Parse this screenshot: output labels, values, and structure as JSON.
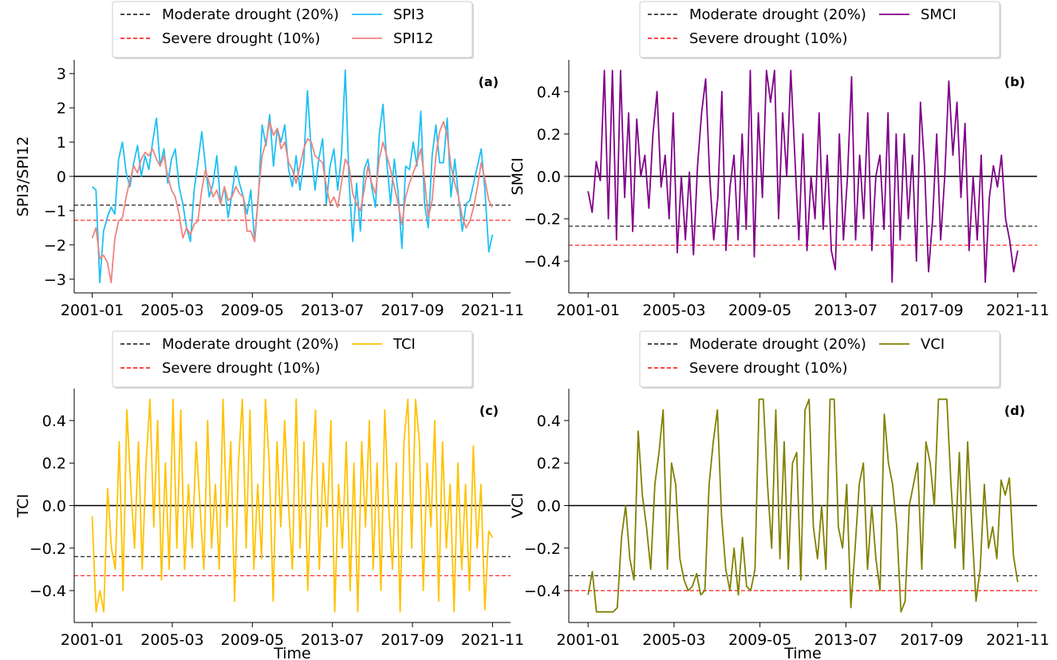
{
  "figure": {
    "x_ticks": [
      "2001-01",
      "2005-03",
      "2009-05",
      "2013-07",
      "2017-09",
      "2021-11"
    ],
    "x_label": "Time"
  },
  "colors": {
    "moderate": "#333333",
    "severe": "#ff2b2b",
    "zero": "#000000",
    "spi3": "#1ec0f2",
    "spi12": "#ee8480",
    "smci": "#800088",
    "tci": "#ffc200",
    "vci": "#808000"
  },
  "chart_data": [
    {
      "id": "a",
      "type": "line",
      "panel_label": "(a)",
      "ylabel": "SPI3/SPI12",
      "xlabel": "",
      "x_range": [
        "2001-01",
        "2021-11"
      ],
      "ylim": [
        -3.4,
        3.4
      ],
      "yticks": [
        -3,
        -2,
        -1,
        0,
        1,
        2,
        3
      ],
      "ytick_labels": [
        "−3",
        "−2",
        "−1",
        "0",
        "1",
        "2",
        "3"
      ],
      "legend": [
        {
          "label": "Moderate drought (20%)",
          "style": "dashed",
          "color": "#333333"
        },
        {
          "label": "SPI3",
          "style": "solid",
          "color": "#1ec0f2"
        },
        {
          "label": "Severe drought (10%)",
          "style": "dashed",
          "color": "#ff2b2b"
        },
        {
          "label": "SPI12",
          "style": "solid",
          "color": "#ee8480"
        }
      ],
      "hlines": {
        "moderate": -0.84,
        "severe": -1.28,
        "zero": 0
      },
      "series": [
        {
          "name": "SPI3",
          "color": "#1ec0f2",
          "x_start": "2001-01",
          "x_end": "2021-11",
          "knots": [
            -0.3,
            -0.4,
            -3.1,
            -1.6,
            -1.2,
            -0.9,
            -1.1,
            0.5,
            1.0,
            0.1,
            -0.3,
            0.4,
            0.9,
            0.0,
            0.6,
            0.2,
            1.0,
            1.7,
            0.3,
            0.8,
            -0.2,
            0.5,
            0.8,
            -0.3,
            -0.8,
            -1.5,
            -1.9,
            -0.4,
            0.4,
            1.3,
            0.3,
            -0.6,
            -0.2,
            0.6,
            -0.8,
            -0.3,
            -1.2,
            -0.5,
            0.3,
            -0.2,
            -0.6,
            -1.1,
            -0.4,
            -1.9,
            -0.6,
            1.5,
            0.9,
            1.8,
            0.3,
            1.4,
            1.0,
            1.5,
            0.2,
            -0.3,
            0.6,
            -0.4,
            0.4,
            2.5,
            0.7,
            -0.4,
            0.5,
            1.1,
            -0.8,
            0.3,
            0.8,
            -0.4,
            0.6,
            3.1,
            -0.1,
            -1.9,
            -0.2,
            -1.6,
            0.2,
            0.5,
            -0.3,
            -0.9,
            1.2,
            2.1,
            0.4,
            -0.8,
            0.5,
            -0.5,
            -2.1,
            0.3,
            0.2,
            1.0,
            0.3,
            1.9,
            -0.8,
            -1.5,
            0.6,
            1.5,
            0.4,
            0.4,
            1.7,
            -0.6,
            0.5,
            -0.6,
            -1.6,
            -0.8,
            -0.7,
            -0.2,
            0.3,
            0.8,
            -0.4,
            -2.2,
            -1.7
          ]
        },
        {
          "name": "SPI12",
          "color": "#ee8480",
          "x_start": "2001-01",
          "x_end": "2021-11",
          "knots": [
            -1.8,
            -1.5,
            -2.4,
            -2.3,
            -2.5,
            -3.1,
            -1.8,
            -1.3,
            -1.2,
            -0.6,
            -0.1,
            0.3,
            0.1,
            0.5,
            0.7,
            0.6,
            0.8,
            0.5,
            0.3,
            0.6,
            0.0,
            -0.4,
            -0.6,
            -1.1,
            -1.8,
            -1.5,
            -1.7,
            -1.4,
            -1.3,
            -0.4,
            0.2,
            -0.2,
            -0.6,
            -0.4,
            -0.8,
            -0.3,
            -0.7,
            -0.6,
            -0.3,
            -0.5,
            -0.6,
            -1.6,
            -1.6,
            -1.9,
            -0.5,
            0.6,
            1.0,
            1.6,
            1.2,
            1.4,
            0.8,
            1.0,
            0.4,
            0.2,
            -0.2,
            0.3,
            0.8,
            1.1,
            1.0,
            0.6,
            0.5,
            0.4,
            -0.3,
            -0.8,
            -0.6,
            -0.9,
            -0.2,
            0.5,
            0.3,
            -0.5,
            -0.8,
            -1.0,
            -0.4,
            0.3,
            -0.2,
            -0.5,
            0.5,
            1.0,
            0.6,
            0.2,
            -0.3,
            -0.8,
            -1.4,
            -0.6,
            -0.2,
            0.1,
            0.4,
            0.8,
            -0.1,
            -1.2,
            -0.7,
            0.6,
            1.3,
            1.6,
            1.2,
            0.3,
            -0.2,
            -0.6,
            -1.2,
            -1.5,
            -1.3,
            -0.9,
            -0.3,
            0.4,
            -0.1,
            -0.7,
            -0.9
          ]
        }
      ]
    },
    {
      "id": "b",
      "type": "line",
      "panel_label": "(b)",
      "ylabel": "SMCI",
      "xlabel": "",
      "x_range": [
        "2001-01",
        "2021-11"
      ],
      "ylim": [
        -0.55,
        0.55
      ],
      "yticks": [
        -0.4,
        -0.2,
        0.0,
        0.2,
        0.4
      ],
      "ytick_labels": [
        "−0.4",
        "−0.2",
        "0.0",
        "0.2",
        "0.4"
      ],
      "legend": [
        {
          "label": "Moderate drought (20%)",
          "style": "dashed",
          "color": "#333333"
        },
        {
          "label": "SMCI",
          "style": "solid",
          "color": "#800088"
        },
        {
          "label": "Severe drought (10%)",
          "style": "dashed",
          "color": "#ff2b2b"
        }
      ],
      "hlines": {
        "moderate": -0.235,
        "severe": -0.325,
        "zero": 0
      },
      "series": [
        {
          "name": "SMCI",
          "color": "#800088",
          "x_start": "2001-01",
          "x_end": "2021-11",
          "knots": [
            -0.07,
            -0.17,
            0.07,
            -0.02,
            0.5,
            -0.2,
            0.5,
            -0.3,
            0.5,
            -0.1,
            0.3,
            -0.26,
            0.27,
            0.0,
            0.1,
            -0.15,
            0.2,
            0.4,
            -0.05,
            0.1,
            -0.2,
            0.3,
            -0.36,
            0.0,
            -0.3,
            0.02,
            -0.37,
            0.05,
            0.3,
            0.46,
            0.0,
            -0.3,
            -0.1,
            0.4,
            -0.35,
            -0.05,
            0.1,
            -0.3,
            0.2,
            -0.25,
            0.5,
            -0.38,
            0.3,
            -0.1,
            0.5,
            0.35,
            0.5,
            -0.2,
            0.3,
            0.0,
            0.5,
            0.1,
            -0.3,
            0.2,
            -0.35,
            0.0,
            -0.2,
            0.3,
            -0.25,
            0.1,
            -0.35,
            -0.44,
            0.2,
            -0.3,
            0.0,
            0.47,
            -0.3,
            0.1,
            -0.2,
            0.3,
            -0.35,
            0.0,
            0.1,
            -0.25,
            0.3,
            -0.5,
            0.2,
            -0.3,
            0.2,
            -0.2,
            0.1,
            -0.4,
            0.35,
            0.05,
            -0.45,
            -0.2,
            0.2,
            -0.3,
            0.0,
            0.45,
            0.1,
            0.35,
            -0.1,
            0.25,
            -0.35,
            0.0,
            -0.3,
            0.1,
            -0.5,
            -0.1,
            0.05,
            -0.05,
            0.1,
            -0.2,
            -0.3,
            -0.45,
            -0.35
          ]
        }
      ]
    },
    {
      "id": "c",
      "type": "line",
      "panel_label": "(c)",
      "ylabel": "TCI",
      "xlabel": "Time",
      "x_range": [
        "2001-01",
        "2021-11"
      ],
      "ylim": [
        -0.55,
        0.55
      ],
      "yticks": [
        -0.4,
        -0.2,
        0.0,
        0.2,
        0.4
      ],
      "ytick_labels": [
        "−0.4",
        "−0.2",
        "0.0",
        "0.2",
        "0.4"
      ],
      "legend": [
        {
          "label": "Moderate drought (20%)",
          "style": "dashed",
          "color": "#333333"
        },
        {
          "label": "TCI",
          "style": "solid",
          "color": "#ffc200"
        },
        {
          "label": "Severe drought (10%)",
          "style": "dashed",
          "color": "#ff2b2b"
        }
      ],
      "hlines": {
        "moderate": -0.24,
        "severe": -0.33,
        "zero": 0
      },
      "series": [
        {
          "name": "TCI",
          "color": "#ffc200",
          "x_start": "2001-01",
          "x_end": "2021-11",
          "knots": [
            -0.05,
            -0.5,
            -0.4,
            -0.5,
            0.08,
            -0.2,
            -0.3,
            0.3,
            -0.4,
            0.45,
            0.1,
            -0.2,
            0.3,
            -0.3,
            0.2,
            0.5,
            -0.1,
            0.4,
            -0.35,
            0.2,
            -0.3,
            0.5,
            -0.2,
            0.45,
            -0.3,
            0.1,
            -0.2,
            0.3,
            0.0,
            -0.3,
            0.4,
            -0.2,
            0.1,
            -0.3,
            0.5,
            -0.1,
            0.3,
            -0.45,
            0.2,
            0.5,
            -0.2,
            0.45,
            -0.3,
            0.1,
            -0.25,
            0.5,
            0.2,
            -0.45,
            0.3,
            -0.1,
            0.4,
            0.0,
            -0.3,
            0.5,
            -0.2,
            0.3,
            -0.4,
            0.1,
            0.45,
            -0.3,
            0.2,
            -0.1,
            0.4,
            -0.5,
            0.1,
            -0.2,
            0.3,
            -0.4,
            0.2,
            -0.5,
            0.3,
            -0.1,
            0.4,
            -0.3,
            0.2,
            -0.4,
            0.45,
            0.0,
            -0.3,
            0.2,
            -0.5,
            0.3,
            0.5,
            -0.2,
            0.5,
            0.3,
            -0.4,
            0.2,
            -0.1,
            0.4,
            -0.45,
            0.3,
            -0.2,
            0.1,
            -0.5,
            0.2,
            -0.3,
            0.1,
            -0.4,
            0.28,
            -0.2,
            0.1,
            -0.49,
            -0.12,
            -0.15
          ]
        }
      ]
    },
    {
      "id": "d",
      "type": "line",
      "panel_label": "(d)",
      "ylabel": "VCI",
      "xlabel": "Time",
      "x_range": [
        "2001-01",
        "2021-11"
      ],
      "ylim": [
        -0.55,
        0.55
      ],
      "yticks": [
        -0.4,
        -0.2,
        0.0,
        0.2,
        0.4
      ],
      "ytick_labels": [
        "−0.4",
        "−0.2",
        "0.0",
        "0.2",
        "0.4"
      ],
      "legend": [
        {
          "label": "Moderate drought (20%)",
          "style": "dashed",
          "color": "#333333"
        },
        {
          "label": "VCI",
          "style": "solid",
          "color": "#808000"
        },
        {
          "label": "Severe drought (10%)",
          "style": "dashed",
          "color": "#ff2b2b"
        }
      ],
      "hlines": {
        "moderate": -0.33,
        "severe": -0.4,
        "zero": 0
      },
      "series": [
        {
          "name": "VCI",
          "color": "#808000",
          "x_start": "2001-01",
          "x_end": "2021-11",
          "knots": [
            -0.42,
            -0.31,
            -0.5,
            -0.5,
            -0.5,
            -0.5,
            -0.5,
            -0.48,
            -0.15,
            0.0,
            -0.25,
            -0.35,
            0.35,
            0.05,
            -0.1,
            -0.3,
            0.1,
            0.25,
            0.45,
            -0.3,
            0.2,
            0.1,
            -0.25,
            -0.35,
            -0.4,
            -0.38,
            -0.32,
            -0.42,
            -0.4,
            0.1,
            0.3,
            0.45,
            -0.05,
            -0.3,
            -0.4,
            -0.2,
            -0.42,
            -0.15,
            -0.38,
            -0.4,
            -0.3,
            0.5,
            0.5,
            0.1,
            -0.2,
            0.45,
            -0.25,
            0.3,
            -0.3,
            0.2,
            0.25,
            -0.35,
            0.45,
            0.5,
            -0.1,
            -0.25,
            0.0,
            -0.3,
            0.5,
            0.5,
            -0.1,
            -0.2,
            0.1,
            -0.48,
            -0.2,
            0.1,
            0.2,
            -0.3,
            0.0,
            -0.25,
            -0.4,
            0.43,
            0.2,
            0.1,
            -0.1,
            -0.5,
            -0.45,
            0.0,
            0.1,
            0.2,
            -0.3,
            0.3,
            0.2,
            0.0,
            0.5,
            0.5,
            0.5,
            0.1,
            -0.2,
            0.25,
            -0.3,
            0.3,
            -0.1,
            -0.45,
            -0.3,
            0.1,
            -0.2,
            -0.1,
            -0.25,
            0.12,
            0.05,
            0.13,
            -0.24,
            -0.36
          ]
        }
      ]
    }
  ]
}
